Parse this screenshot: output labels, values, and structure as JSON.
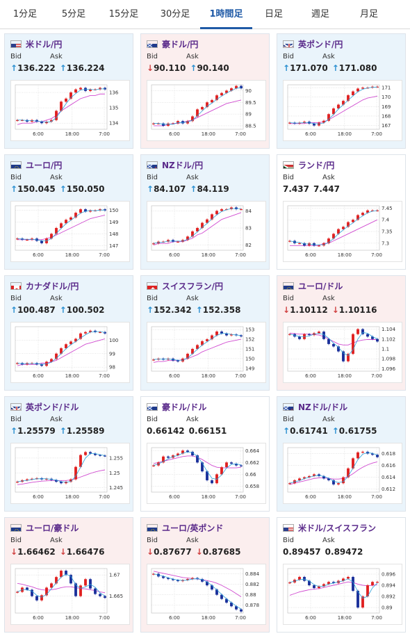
{
  "tabs": [
    {
      "label": "1分足",
      "active": false
    },
    {
      "label": "5分足",
      "active": false
    },
    {
      "label": "15分足",
      "active": false
    },
    {
      "label": "30分足",
      "active": false
    },
    {
      "label": "1時間足",
      "active": true
    },
    {
      "label": "日足",
      "active": false
    },
    {
      "label": "週足",
      "active": false
    },
    {
      "label": "月足",
      "active": false
    }
  ],
  "labels": {
    "bid": "Bid",
    "ask": "Ask"
  },
  "cards": [
    {
      "pair": "米ドル/円",
      "flag": "us",
      "bid": "136.222",
      "ask": "136.224",
      "bid_dir": "up",
      "ask_dir": "up",
      "tone": "up",
      "chart_data": {
        "type": "line",
        "x_ticks": [
          "6:00",
          "18:00",
          "7:00"
        ],
        "y_ticks": [
          "136",
          "135",
          "134"
        ],
        "ylim": [
          133.6,
          136.5
        ],
        "price": [
          134.2,
          134.2,
          134.1,
          134.2,
          134.1,
          134.0,
          134.1,
          134.2,
          134.8,
          135.4,
          135.6,
          136.0,
          136.2,
          136.3,
          136.1,
          136.2,
          136.2,
          136.3,
          136.2
        ],
        "ma": [
          133.9,
          134.0,
          134.0,
          134.0,
          134.1,
          134.1,
          134.2,
          134.3,
          134.5,
          134.8,
          135.0,
          135.2,
          135.4,
          135.6,
          135.7,
          135.8,
          135.8,
          135.9,
          135.9
        ]
      }
    },
    {
      "pair": "豪ドル/円",
      "flag": "au",
      "bid": "90.110",
      "ask": "90.140",
      "bid_dir": "down",
      "ask_dir": "up",
      "tone": "down",
      "chart_data": {
        "type": "line",
        "x_ticks": [
          "6:00",
          "18:00",
          "7:00"
        ],
        "y_ticks": [
          "90",
          "89.5",
          "89",
          "88.5"
        ],
        "ylim": [
          88.35,
          90.25
        ],
        "price": [
          88.6,
          88.6,
          88.5,
          88.6,
          88.6,
          88.7,
          88.6,
          88.7,
          88.9,
          89.2,
          89.3,
          89.5,
          89.6,
          89.8,
          89.9,
          90.0,
          90.1,
          90.2,
          90.1
        ],
        "ma": [
          88.5,
          88.5,
          88.5,
          88.55,
          88.6,
          88.6,
          88.65,
          88.7,
          88.75,
          88.85,
          88.95,
          89.05,
          89.15,
          89.25,
          89.35,
          89.45,
          89.5,
          89.55,
          89.6
        ]
      }
    },
    {
      "pair": "英ポンド/円",
      "flag": "gb",
      "bid": "171.070",
      "ask": "171.080",
      "bid_dir": "up",
      "ask_dir": "up",
      "tone": "up",
      "chart_data": {
        "type": "line",
        "x_ticks": [
          "6:00",
          "18:00",
          "7:00"
        ],
        "y_ticks": [
          "171",
          "170",
          "169",
          "168",
          "167"
        ],
        "ylim": [
          166.6,
          171.3
        ],
        "price": [
          167.3,
          167.2,
          167.3,
          167.4,
          167.2,
          167.0,
          167.3,
          167.5,
          168.2,
          168.8,
          169.2,
          169.6,
          170.2,
          170.6,
          170.9,
          171.0,
          171.0,
          171.1,
          171.1
        ],
        "ma": [
          167.2,
          167.2,
          167.2,
          167.2,
          167.3,
          167.3,
          167.3,
          167.4,
          167.6,
          167.9,
          168.2,
          168.5,
          168.8,
          169.1,
          169.4,
          169.7,
          169.9,
          170.0,
          170.1
        ]
      }
    },
    {
      "pair": "ユーロ/円",
      "flag": "eu",
      "bid": "150.045",
      "ask": "150.050",
      "bid_dir": "up",
      "ask_dir": "up",
      "tone": "up",
      "chart_data": {
        "type": "line",
        "x_ticks": [
          "6:00",
          "18:00",
          "7:00"
        ],
        "y_ticks": [
          "150",
          "149",
          "148",
          "147"
        ],
        "ylim": [
          146.6,
          150.4
        ],
        "price": [
          147.6,
          147.5,
          147.5,
          147.6,
          147.4,
          147.2,
          147.6,
          148.0,
          148.5,
          148.9,
          149.2,
          149.4,
          149.8,
          150.1,
          149.9,
          150.0,
          150.0,
          150.1,
          150.0
        ],
        "ma": [
          147.5,
          147.5,
          147.5,
          147.5,
          147.5,
          147.5,
          147.6,
          147.7,
          147.9,
          148.1,
          148.3,
          148.5,
          148.7,
          148.9,
          149.1,
          149.3,
          149.4,
          149.5,
          149.6
        ]
      }
    },
    {
      "pair": "NZドル/円",
      "flag": "nz",
      "bid": "84.107",
      "ask": "84.119",
      "bid_dir": "up",
      "ask_dir": "up",
      "tone": "up",
      "chart_data": {
        "type": "line",
        "x_ticks": [
          "6:00",
          "18:00",
          "7:00"
        ],
        "y_ticks": [
          "84",
          "83",
          "82"
        ],
        "ylim": [
          81.7,
          84.3
        ],
        "price": [
          82.1,
          82.2,
          82.2,
          82.3,
          82.2,
          82.2,
          82.3,
          82.5,
          82.8,
          83.0,
          83.3,
          83.5,
          83.8,
          84.0,
          84.1,
          84.1,
          84.2,
          84.1,
          84.1
        ],
        "ma": [
          82.0,
          82.1,
          82.1,
          82.1,
          82.2,
          82.2,
          82.2,
          82.3,
          82.4,
          82.6,
          82.7,
          82.9,
          83.1,
          83.3,
          83.5,
          83.6,
          83.7,
          83.8,
          83.9
        ]
      }
    },
    {
      "pair": "ランド/円",
      "flag": "za",
      "bid": "7.437",
      "ask": "7.447",
      "bid_dir": "none",
      "ask_dir": "none",
      "tone": "neutral",
      "chart_data": {
        "type": "line",
        "x_ticks": [
          "6:00",
          "18:00",
          "7:00"
        ],
        "y_ticks": [
          "7.45",
          "7.4",
          "7.35",
          "7.3"
        ],
        "ylim": [
          7.27,
          7.46
        ],
        "price": [
          7.31,
          7.3,
          7.3,
          7.29,
          7.3,
          7.29,
          7.29,
          7.3,
          7.32,
          7.34,
          7.36,
          7.37,
          7.39,
          7.4,
          7.42,
          7.43,
          7.44,
          7.44,
          7.44
        ],
        "ma": [
          7.29,
          7.29,
          7.29,
          7.29,
          7.29,
          7.29,
          7.29,
          7.3,
          7.3,
          7.31,
          7.32,
          7.33,
          7.34,
          7.35,
          7.36,
          7.37,
          7.38,
          7.39,
          7.4
        ]
      }
    },
    {
      "pair": "カナダドル/円",
      "flag": "ca",
      "bid": "100.487",
      "ask": "100.502",
      "bid_dir": "up",
      "ask_dir": "up",
      "tone": "up",
      "chart_data": {
        "type": "line",
        "x_ticks": [
          "6:00",
          "18:00",
          "7:00"
        ],
        "y_ticks": [
          "100",
          "99",
          "98"
        ],
        "ylim": [
          97.7,
          101.0
        ],
        "price": [
          98.3,
          98.2,
          98.3,
          98.3,
          98.2,
          98.1,
          98.4,
          98.6,
          99.0,
          99.4,
          99.7,
          99.9,
          100.1,
          100.5,
          100.6,
          100.7,
          100.6,
          100.6,
          100.5
        ],
        "ma": [
          98.1,
          98.2,
          98.2,
          98.2,
          98.2,
          98.3,
          98.3,
          98.4,
          98.5,
          98.7,
          98.9,
          99.1,
          99.3,
          99.5,
          99.7,
          99.8,
          99.9,
          100.0,
          100.1
        ]
      }
    },
    {
      "pair": "スイスフラン/円",
      "flag": "ch",
      "bid": "152.342",
      "ask": "152.358",
      "bid_dir": "up",
      "ask_dir": "up",
      "tone": "up",
      "chart_data": {
        "type": "line",
        "x_ticks": [
          "6:00",
          "18:00",
          "7:00"
        ],
        "y_ticks": [
          "153",
          "152",
          "151",
          "150",
          "149"
        ],
        "ylim": [
          148.7,
          153.3
        ],
        "price": [
          149.9,
          150.0,
          149.9,
          150.0,
          149.8,
          149.7,
          150.0,
          150.5,
          151.0,
          151.4,
          151.8,
          152.0,
          152.4,
          152.8,
          152.6,
          152.4,
          152.5,
          152.4,
          152.3
        ],
        "ma": [
          149.6,
          149.7,
          149.7,
          149.8,
          149.8,
          149.8,
          149.9,
          150.0,
          150.2,
          150.4,
          150.7,
          150.9,
          151.1,
          151.3,
          151.5,
          151.7,
          151.8,
          151.9,
          152.0
        ]
      }
    },
    {
      "pair": "ユーロ/ドル",
      "flag": "eu",
      "bid": "1.10112",
      "ask": "1.10116",
      "bid_dir": "down",
      "ask_dir": "down",
      "tone": "down",
      "chart_data": {
        "type": "line",
        "x_ticks": [
          "6:00",
          "18:00",
          "7:00"
        ],
        "y_ticks": [
          "1.104",
          "1.102",
          "1.1",
          "1.098",
          "1.096"
        ],
        "ylim": [
          1.0955,
          1.1045
        ],
        "price": [
          1.103,
          1.1025,
          1.102,
          1.103,
          1.1028,
          1.1032,
          1.1035,
          1.102,
          1.101,
          1.1005,
          1.0995,
          1.0975,
          1.099,
          1.103,
          1.104,
          1.103,
          1.1025,
          1.102,
          1.1015
        ],
        "ma": [
          1.1032,
          1.1031,
          1.103,
          1.103,
          1.103,
          1.1029,
          1.1028,
          1.1025,
          1.102,
          1.1015,
          1.101,
          1.1008,
          1.1008,
          1.1012,
          1.1016,
          1.1018,
          1.1019,
          1.1019,
          1.1019
        ]
      }
    },
    {
      "pair": "英ポンド/ドル",
      "flag": "gb",
      "bid": "1.25579",
      "ask": "1.25589",
      "bid_dir": "up",
      "ask_dir": "up",
      "tone": "up",
      "chart_data": {
        "type": "line",
        "x_ticks": [
          "6:00",
          "18:00",
          "7:00"
        ],
        "y_ticks": [
          "1.255",
          "1.25",
          "1.245"
        ],
        "ylim": [
          1.2435,
          1.2585
        ],
        "price": [
          1.247,
          1.2475,
          1.2478,
          1.248,
          1.2482,
          1.2478,
          1.248,
          1.2476,
          1.247,
          1.2465,
          1.247,
          1.2478,
          1.252,
          1.256,
          1.257,
          1.2565,
          1.256,
          1.2558,
          1.2557
        ],
        "ma": [
          1.246,
          1.2462,
          1.2465,
          1.2468,
          1.247,
          1.2472,
          1.2473,
          1.2474,
          1.2474,
          1.2474,
          1.2474,
          1.2476,
          1.248,
          1.2486,
          1.2492,
          1.2498,
          1.2503,
          1.2507,
          1.251
        ]
      }
    },
    {
      "pair": "豪ドル/ドル",
      "flag": "au",
      "bid": "0.66142",
      "ask": "0.66151",
      "bid_dir": "none",
      "ask_dir": "none",
      "tone": "neutral",
      "chart_data": {
        "type": "line",
        "x_ticks": [
          "6:00",
          "18:00",
          "7:00"
        ],
        "y_ticks": [
          "0.664",
          "0.662",
          "0.66",
          "0.658"
        ],
        "ylim": [
          0.657,
          0.6645
        ],
        "price": [
          0.6615,
          0.662,
          0.663,
          0.6628,
          0.6632,
          0.6635,
          0.664,
          0.6638,
          0.6632,
          0.662,
          0.6605,
          0.659,
          0.6585,
          0.66,
          0.6612,
          0.662,
          0.6618,
          0.6615,
          0.6614
        ],
        "ma": [
          0.6618,
          0.662,
          0.6622,
          0.6624,
          0.6626,
          0.6628,
          0.663,
          0.6631,
          0.6631,
          0.6629,
          0.6625,
          0.662,
          0.6615,
          0.6612,
          0.6611,
          0.6611,
          0.6611,
          0.6611,
          0.6612
        ]
      }
    },
    {
      "pair": "NZドル/ドル",
      "flag": "nz",
      "bid": "0.61741",
      "ask": "0.61755",
      "bid_dir": "up",
      "ask_dir": "up",
      "tone": "up",
      "chart_data": {
        "type": "line",
        "x_ticks": [
          "6:00",
          "18:00",
          "7:00"
        ],
        "y_ticks": [
          "0.618",
          "0.616",
          "0.614",
          "0.612"
        ],
        "ylim": [
          0.6115,
          0.619
        ],
        "price": [
          0.613,
          0.6135,
          0.6138,
          0.614,
          0.6142,
          0.6145,
          0.6142,
          0.6138,
          0.6135,
          0.6128,
          0.613,
          0.614,
          0.6155,
          0.6172,
          0.6182,
          0.6183,
          0.618,
          0.6178,
          0.6174
        ],
        "ma": [
          0.6128,
          0.613,
          0.6132,
          0.6134,
          0.6136,
          0.6138,
          0.6139,
          0.6139,
          0.6138,
          0.6137,
          0.6137,
          0.6138,
          0.6141,
          0.6146,
          0.6152,
          0.6157,
          0.6161,
          0.6164,
          0.6166
        ]
      }
    },
    {
      "pair": "ユーロ/豪ドル",
      "flag": "eu",
      "bid": "1.66462",
      "ask": "1.66476",
      "bid_dir": "down",
      "ask_dir": "down",
      "tone": "down",
      "chart_data": {
        "type": "line",
        "x_ticks": [
          "6:00",
          "18:00",
          "7:00"
        ],
        "y_ticks": [
          "1.67",
          "1.665"
        ],
        "ylim": [
          1.661,
          1.6715
        ],
        "price": [
          1.666,
          1.667,
          1.6665,
          1.665,
          1.664,
          1.6652,
          1.667,
          1.668,
          1.6695,
          1.671,
          1.67,
          1.668,
          1.665,
          1.6675,
          1.669,
          1.6668,
          1.6655,
          1.665,
          1.6646
        ],
        "ma": [
          1.668,
          1.6678,
          1.6675,
          1.6672,
          1.6668,
          1.6665,
          1.6664,
          1.6665,
          1.6667,
          1.667,
          1.6672,
          1.6672,
          1.667,
          1.6668,
          1.6667,
          1.6665,
          1.6663,
          1.666,
          1.6658
        ]
      }
    },
    {
      "pair": "ユーロ/英ポンド",
      "flag": "eu",
      "bid": "0.87677",
      "ask": "0.87685",
      "bid_dir": "down",
      "ask_dir": "down",
      "tone": "down",
      "chart_data": {
        "type": "line",
        "x_ticks": [
          "6:00",
          "18:00",
          "7:00"
        ],
        "y_ticks": [
          "0.884",
          "0.882",
          "0.88",
          "0.878"
        ],
        "ylim": [
          0.8765,
          0.885
        ],
        "price": [
          0.884,
          0.8835,
          0.8832,
          0.883,
          0.8828,
          0.8826,
          0.8828,
          0.883,
          0.8832,
          0.883,
          0.8825,
          0.8818,
          0.881,
          0.88,
          0.8792,
          0.8785,
          0.8778,
          0.8772,
          0.8768
        ],
        "ma": [
          0.8845,
          0.8843,
          0.8841,
          0.8839,
          0.8837,
          0.8835,
          0.8833,
          0.8832,
          0.8831,
          0.883,
          0.8829,
          0.8827,
          0.8825,
          0.8822,
          0.8818,
          0.8813,
          0.8808,
          0.8802,
          0.8796
        ]
      }
    },
    {
      "pair": "米ドル/スイスフラン",
      "flag": "us",
      "bid": "0.89457",
      "ask": "0.89472",
      "bid_dir": "none",
      "ask_dir": "none",
      "tone": "neutral",
      "chart_data": {
        "type": "line",
        "x_ticks": [
          "6:00",
          "18:00",
          "7:00"
        ],
        "y_ticks": [
          "0.896",
          "0.894",
          "0.892",
          "0.89"
        ],
        "ylim": [
          0.889,
          0.897
        ],
        "price": [
          0.8945,
          0.895,
          0.8955,
          0.8948,
          0.894,
          0.8935,
          0.8938,
          0.8942,
          0.8946,
          0.8944,
          0.8948,
          0.8952,
          0.8955,
          0.893,
          0.89,
          0.892,
          0.894,
          0.8946,
          0.8946
        ],
        "ma": [
          0.8922,
          0.8925,
          0.8928,
          0.893,
          0.8932,
          0.8933,
          0.8934,
          0.8936,
          0.8938,
          0.894,
          0.8942,
          0.8944,
          0.8946,
          0.8945,
          0.8942,
          0.894,
          0.8939,
          0.894,
          0.8941
        ]
      }
    }
  ],
  "colors": {
    "up_arrow": "#2a8fd0",
    "down_arrow": "#d04040",
    "candle_up": "#e02020",
    "candle_down": "#1a2f9a",
    "ma_short": "#2a9fd8",
    "ma_long": "#d04ad0",
    "pair_text": "#5a2a8a",
    "tab_active": "#1f5aa6"
  }
}
